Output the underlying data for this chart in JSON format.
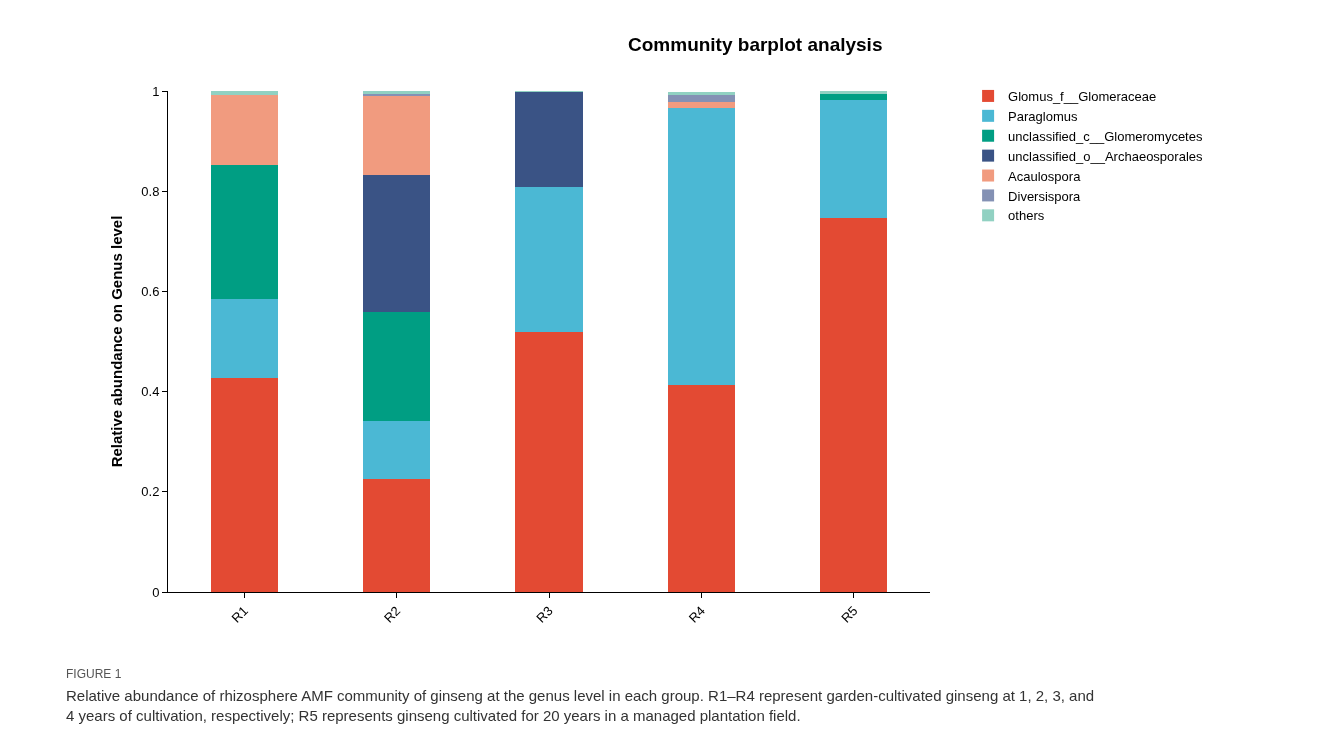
{
  "chart_data": {
    "type": "bar",
    "stacked": true,
    "title": "Community barplot analysis",
    "ylabel": "Relative abundance on Genus level",
    "categories": [
      "R1",
      "R2",
      "R3",
      "R4",
      "R5"
    ],
    "series": [
      {
        "name": "Glomus_f__Glomeraceae",
        "color": "#e34a33",
        "values": [
          0.427,
          0.226,
          0.519,
          0.413,
          0.746
        ]
      },
      {
        "name": "Paraglomus",
        "color": "#4bb8d4",
        "values": [
          0.158,
          0.115,
          0.289,
          0.554,
          0.237
        ]
      },
      {
        "name": "unclassified_c__Glomeromycetes",
        "color": "#009e83",
        "values": [
          0.268,
          0.218,
          0,
          0,
          0.011
        ]
      },
      {
        "name": "unclassified_o__Archaeosporales",
        "color": "#3a5385",
        "values": [
          0,
          0.273,
          0.19,
          0,
          0
        ]
      },
      {
        "name": "Acaulospora",
        "color": "#f19b7f",
        "values": [
          0.14,
          0.158,
          0,
          0.012,
          0
        ]
      },
      {
        "name": "Diversispora",
        "color": "#8491b4",
        "values": [
          0,
          0.004,
          0,
          0.013,
          0
        ]
      },
      {
        "name": "others",
        "color": "#91d1c2",
        "values": [
          0.007,
          0.006,
          0.002,
          0.006,
          0.006
        ]
      }
    ],
    "ylim": [
      0,
      1
    ],
    "yticks": [
      0,
      0.2,
      0.4,
      0.6,
      0.8,
      1
    ],
    "legend": "top right",
    "annotations": [
      "FIGURE 1",
      "Relative abundance of rhizosphere AMF community of ginseng at the genus level in each group. R1–R4 represent garden-cultivated ginseng at 1, 2, 3, and 4 years of cultivation, respectively; R5 represents ginseng cultivated for 20 years in a managed plantation field."
    ]
  }
}
